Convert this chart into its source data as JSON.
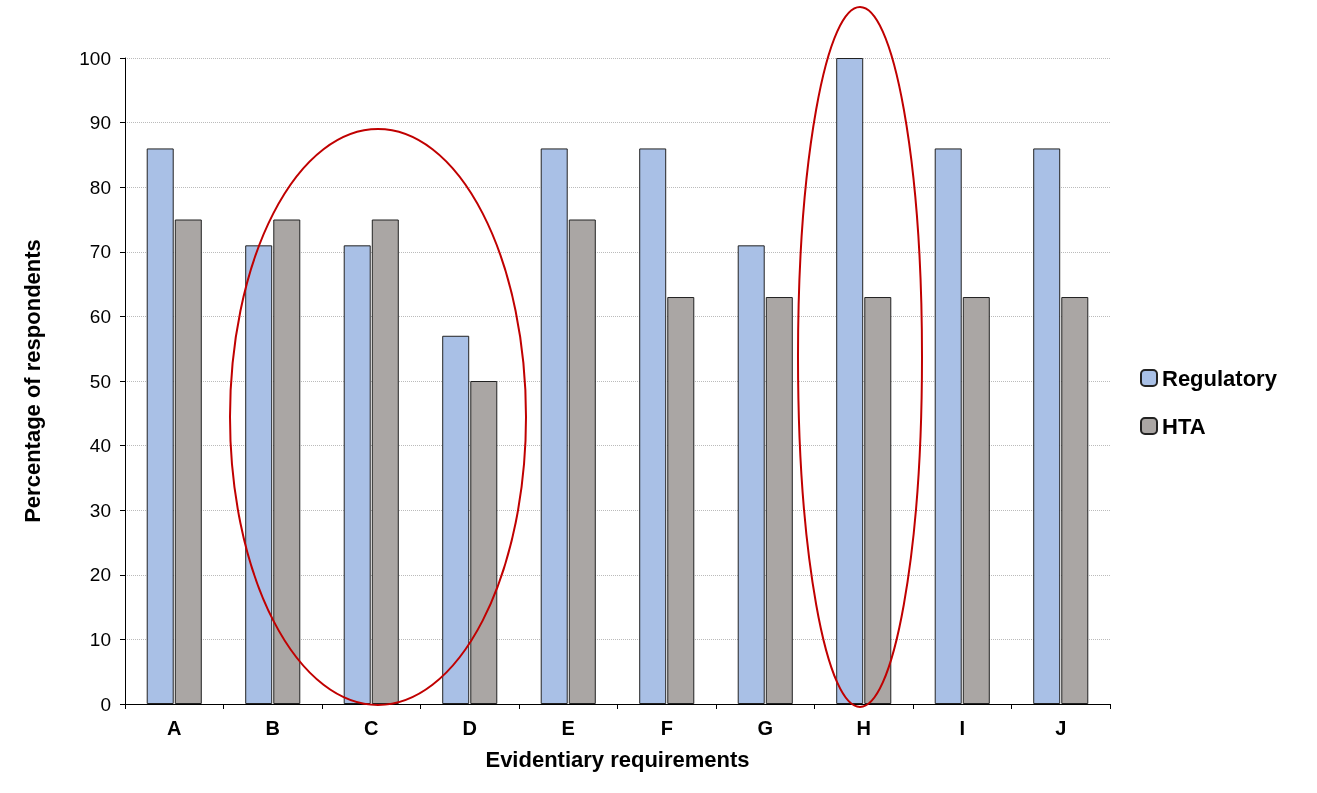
{
  "chart_data": {
    "type": "bar",
    "xlabel": "Evidentiary requirements",
    "ylabel": "Percentage of respondents",
    "categories": [
      "A",
      "B",
      "C",
      "D",
      "E",
      "F",
      "G",
      "H",
      "I",
      "J"
    ],
    "series": [
      {
        "name": "Regulatory",
        "color": "#a9c0e6",
        "values": [
          86,
          71,
          71,
          57,
          86,
          86,
          71,
          100,
          86,
          86
        ]
      },
      {
        "name": "HTA",
        "color": "#aaa6a4",
        "values": [
          75,
          75,
          75,
          50,
          75,
          63,
          63,
          63,
          63,
          63
        ]
      }
    ],
    "ylim": [
      0,
      100
    ],
    "yticks": [
      0,
      10,
      20,
      30,
      40,
      50,
      60,
      70,
      80,
      90,
      100
    ],
    "grid": "y",
    "legend": "right"
  }
}
